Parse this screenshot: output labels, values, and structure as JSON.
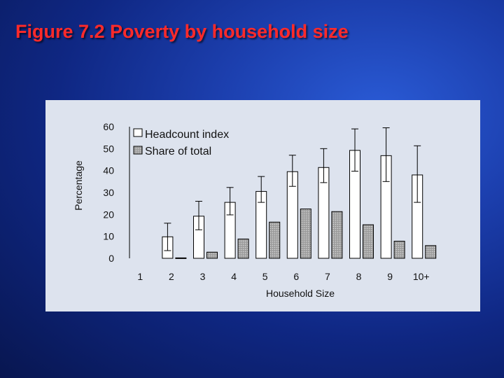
{
  "slide": {
    "title": "Figure 7.2 Poverty by household size"
  },
  "chart_data": {
    "type": "bar",
    "title": "",
    "xlabel": "Household Size",
    "ylabel": "Percentage",
    "categories": [
      "1",
      "2",
      "3",
      "4",
      "5",
      "6",
      "7",
      "8",
      "9",
      "10+"
    ],
    "ylim": [
      0,
      60
    ],
    "yticks": [
      0,
      10,
      20,
      30,
      40,
      50,
      60
    ],
    "grid": false,
    "legend_position": "top-left",
    "series": [
      {
        "name": "Headcount index",
        "values": [
          0,
          9.8,
          19.2,
          25.5,
          30.5,
          39.5,
          41.4,
          49.2,
          46.8,
          38
        ],
        "error_low": [
          0,
          3.5,
          13,
          19.8,
          25.5,
          32.8,
          34.5,
          39.7,
          35,
          25.5
        ],
        "error_high": [
          0,
          16,
          26,
          32.3,
          37.3,
          47,
          50,
          59,
          59.5,
          51.3
        ],
        "fill": "#ffffff"
      },
      {
        "name": "Share of total",
        "values": [
          0,
          0.2,
          2.8,
          8.8,
          16.5,
          22.5,
          21.3,
          15.3,
          7.8,
          5.8
        ],
        "fill": "#a8a8a8"
      }
    ],
    "colors": {
      "panel_background": "#dde3ee",
      "title": "#ff2a2a"
    }
  }
}
